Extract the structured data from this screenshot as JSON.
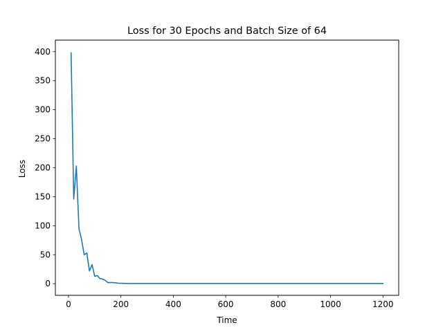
{
  "chart_data": {
    "type": "line",
    "title": "Loss for 30 Epochs and Batch Size of 64",
    "xlabel": "Time",
    "ylabel": "Loss",
    "xlim": [
      -50,
      1260
    ],
    "ylim": [
      -20,
      420
    ],
    "xticks": [
      0,
      200,
      400,
      600,
      800,
      1000,
      1200
    ],
    "yticks": [
      0,
      50,
      100,
      150,
      200,
      250,
      300,
      350,
      400
    ],
    "grid": false,
    "legend": "none",
    "series": [
      {
        "color": "#1f77b4",
        "x": [
          10,
          20,
          30,
          40,
          50,
          60,
          70,
          80,
          90,
          100,
          110,
          120,
          130,
          140,
          150,
          160,
          170,
          180,
          190,
          200,
          210,
          220,
          230,
          240,
          250,
          300,
          400,
          500,
          600,
          700,
          800,
          900,
          1000,
          1100,
          1200
        ],
        "y": [
          398,
          146,
          203,
          95,
          76,
          50,
          53,
          22,
          33,
          13,
          14,
          9,
          8,
          6,
          2,
          2,
          2,
          1.5,
          1,
          0.8,
          0.6,
          0.5,
          0.4,
          0.4,
          0.3,
          0.3,
          0.3,
          0.3,
          0.3,
          0.3,
          0.3,
          0.3,
          0.3,
          0.3,
          0.3
        ]
      }
    ]
  }
}
